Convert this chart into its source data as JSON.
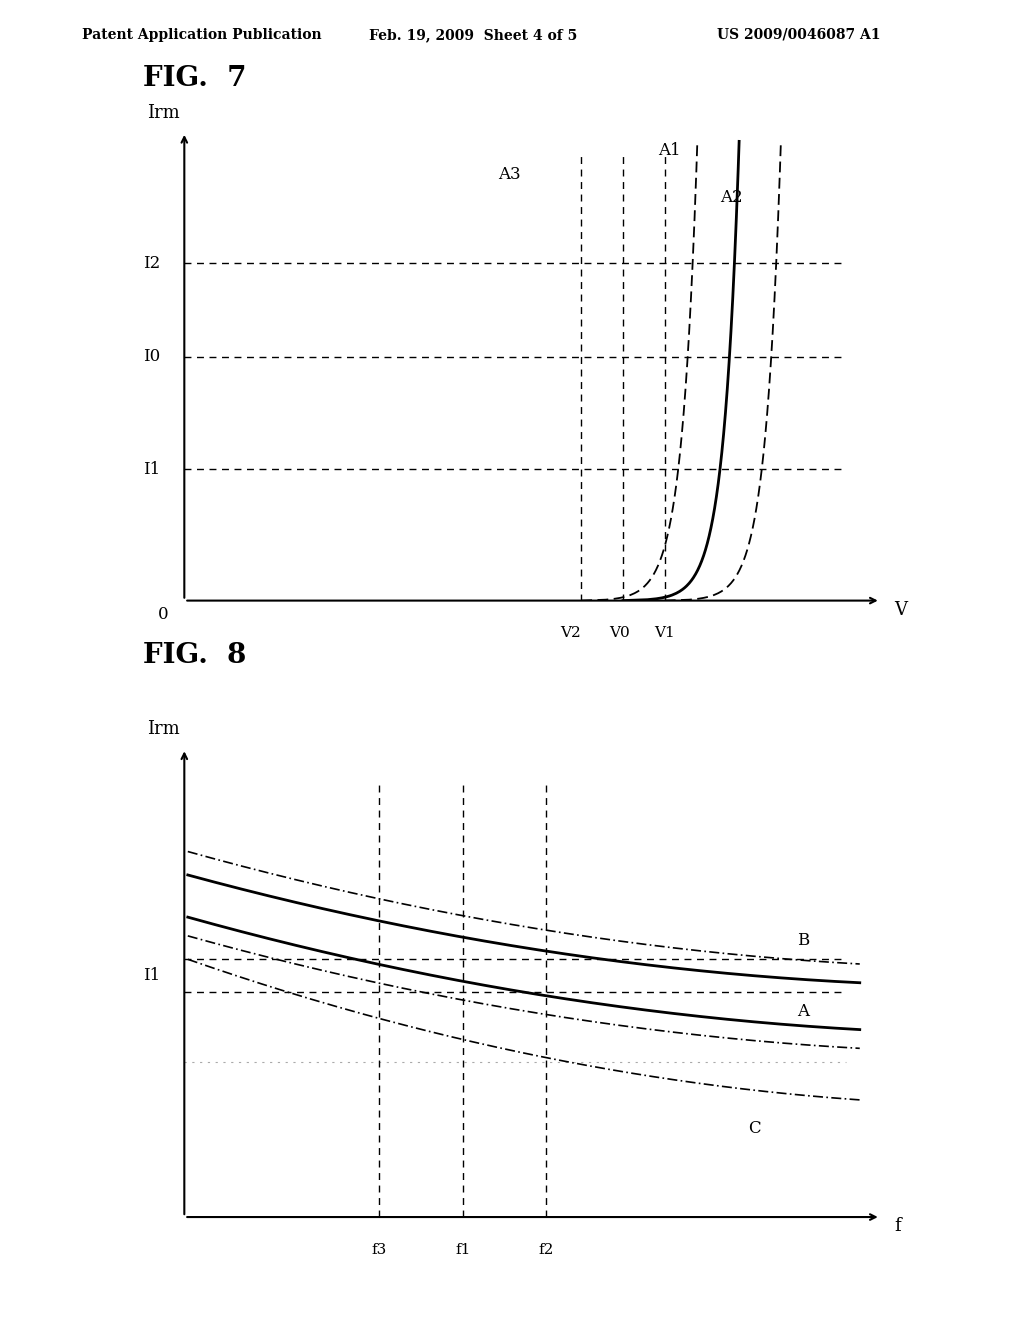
{
  "header_left": "Patent Application Publication",
  "header_mid": "Feb. 19, 2009  Sheet 4 of 5",
  "header_right": "US 2009/0046087 A1",
  "fig7_title": "FIG.  7",
  "fig8_title": "FIG.  8",
  "bg_color": "#ffffff"
}
